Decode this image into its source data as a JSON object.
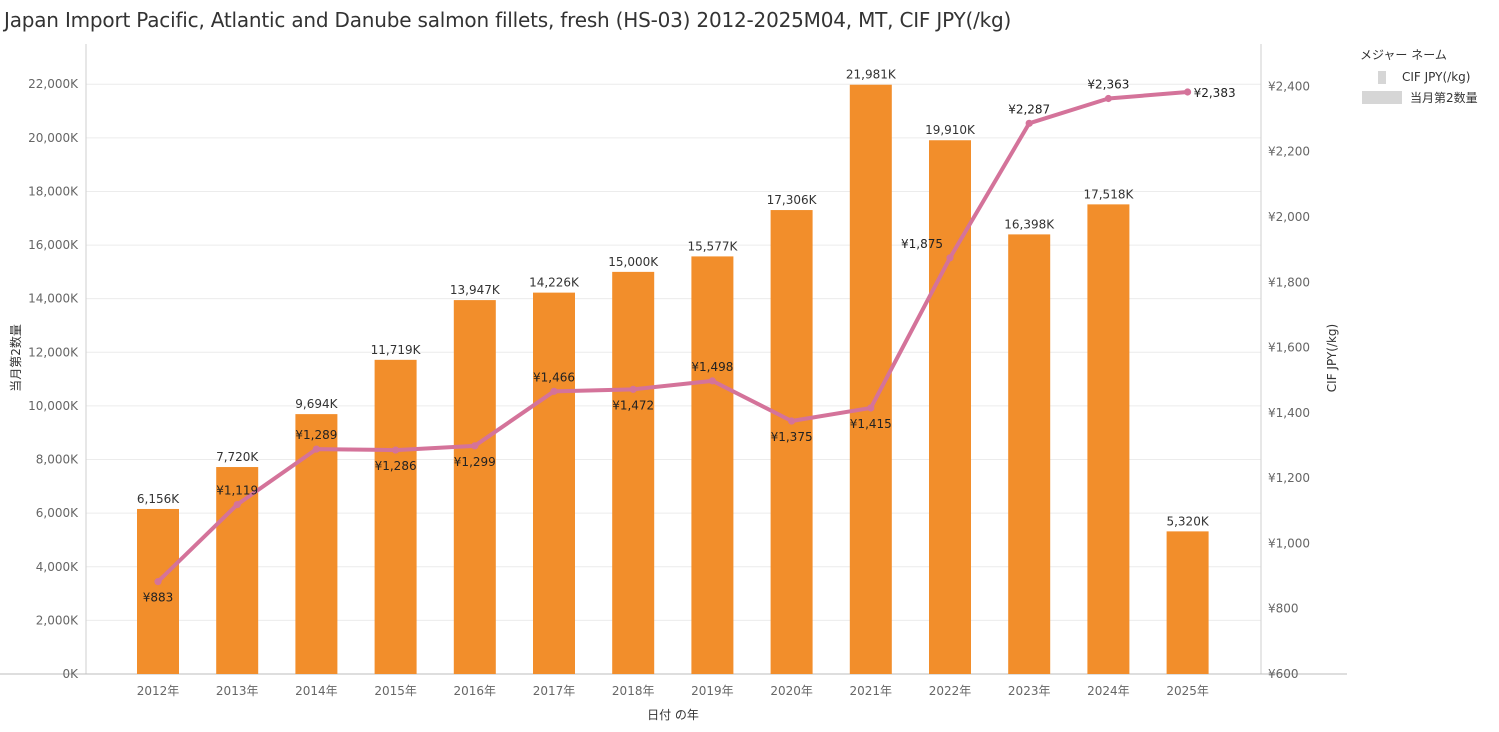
{
  "title": "Japan Import Pacific, Atlantic and Danube salmon fillets, fresh (HS-03) 2012-2025M04, MT, CIF JPY(/kg)",
  "legend": {
    "title": "メジャー ネーム",
    "items": [
      {
        "label": "CIF JPY(/kg)",
        "icon": "line-swatch-icon"
      },
      {
        "label": "当月第2数量",
        "icon": "bar-swatch-icon"
      }
    ]
  },
  "colors": {
    "bar": "#f28e2b",
    "line": "#d4739a",
    "swatch": "#d6d6d6",
    "grid": "#ececec"
  },
  "chart_data": {
    "type": "bar",
    "title": "Japan Import Pacific, Atlantic and Danube salmon fillets, fresh (HS-03) 2012-2025M04, MT, CIF JPY(/kg)",
    "xlabel": "日付 の年",
    "ylabel": "当月第2数量",
    "y2label": "CIF JPY(/kg)",
    "legend_position": "top-right",
    "grid": true,
    "categories": [
      "2012年",
      "2013年",
      "2014年",
      "2015年",
      "2016年",
      "2017年",
      "2018年",
      "2019年",
      "2020年",
      "2021年",
      "2022年",
      "2023年",
      "2024年",
      "2025年"
    ],
    "series": [
      {
        "name": "当月第2数量",
        "type": "bar",
        "axis": "left",
        "values": [
          6156,
          7720,
          9694,
          11719,
          13947,
          14226,
          15000,
          15577,
          17306,
          21981,
          19910,
          16398,
          17518,
          5320
        ],
        "labels": [
          "6,156K",
          "7,720K",
          "9,694K",
          "11,719K",
          "13,947K",
          "14,226K",
          "15,000K",
          "15,577K",
          "17,306K",
          "21,981K",
          "19,910K",
          "16,398K",
          "17,518K",
          "5,320K"
        ]
      },
      {
        "name": "CIF JPY(/kg)",
        "type": "line",
        "axis": "right",
        "values": [
          883,
          1119,
          1289,
          1286,
          1299,
          1466,
          1472,
          1498,
          1375,
          1415,
          1875,
          2287,
          2363,
          2383
        ],
        "labels": [
          "¥883",
          "¥1,119",
          "¥1,289",
          "¥1,286",
          "¥1,299",
          "¥1,466",
          "¥1,472",
          "¥1,498",
          "¥1,375",
          "¥1,415",
          "¥1,875",
          "¥2,287",
          "¥2,363",
          "¥2,383"
        ],
        "label_side": [
          "below",
          "above",
          "above",
          "below",
          "below",
          "above",
          "below",
          "above",
          "below",
          "below",
          "left",
          "above",
          "above",
          "right"
        ]
      }
    ],
    "ylim": [
      0,
      23500
    ],
    "y2lim": [
      600,
      2530
    ],
    "yticks": [
      0,
      2000,
      4000,
      6000,
      8000,
      10000,
      12000,
      14000,
      16000,
      18000,
      20000,
      22000
    ],
    "ytick_labels": [
      "0K",
      "2,000K",
      "4,000K",
      "6,000K",
      "8,000K",
      "10,000K",
      "12,000K",
      "14,000K",
      "16,000K",
      "18,000K",
      "20,000K",
      "22,000K"
    ],
    "y2ticks": [
      600,
      800,
      1000,
      1200,
      1400,
      1600,
      1800,
      2000,
      2200,
      2400
    ],
    "y2tick_labels": [
      "¥600",
      "¥800",
      "¥1,000",
      "¥1,200",
      "¥1,400",
      "¥1,600",
      "¥1,800",
      "¥2,000",
      "¥2,200",
      "¥2,400"
    ]
  }
}
